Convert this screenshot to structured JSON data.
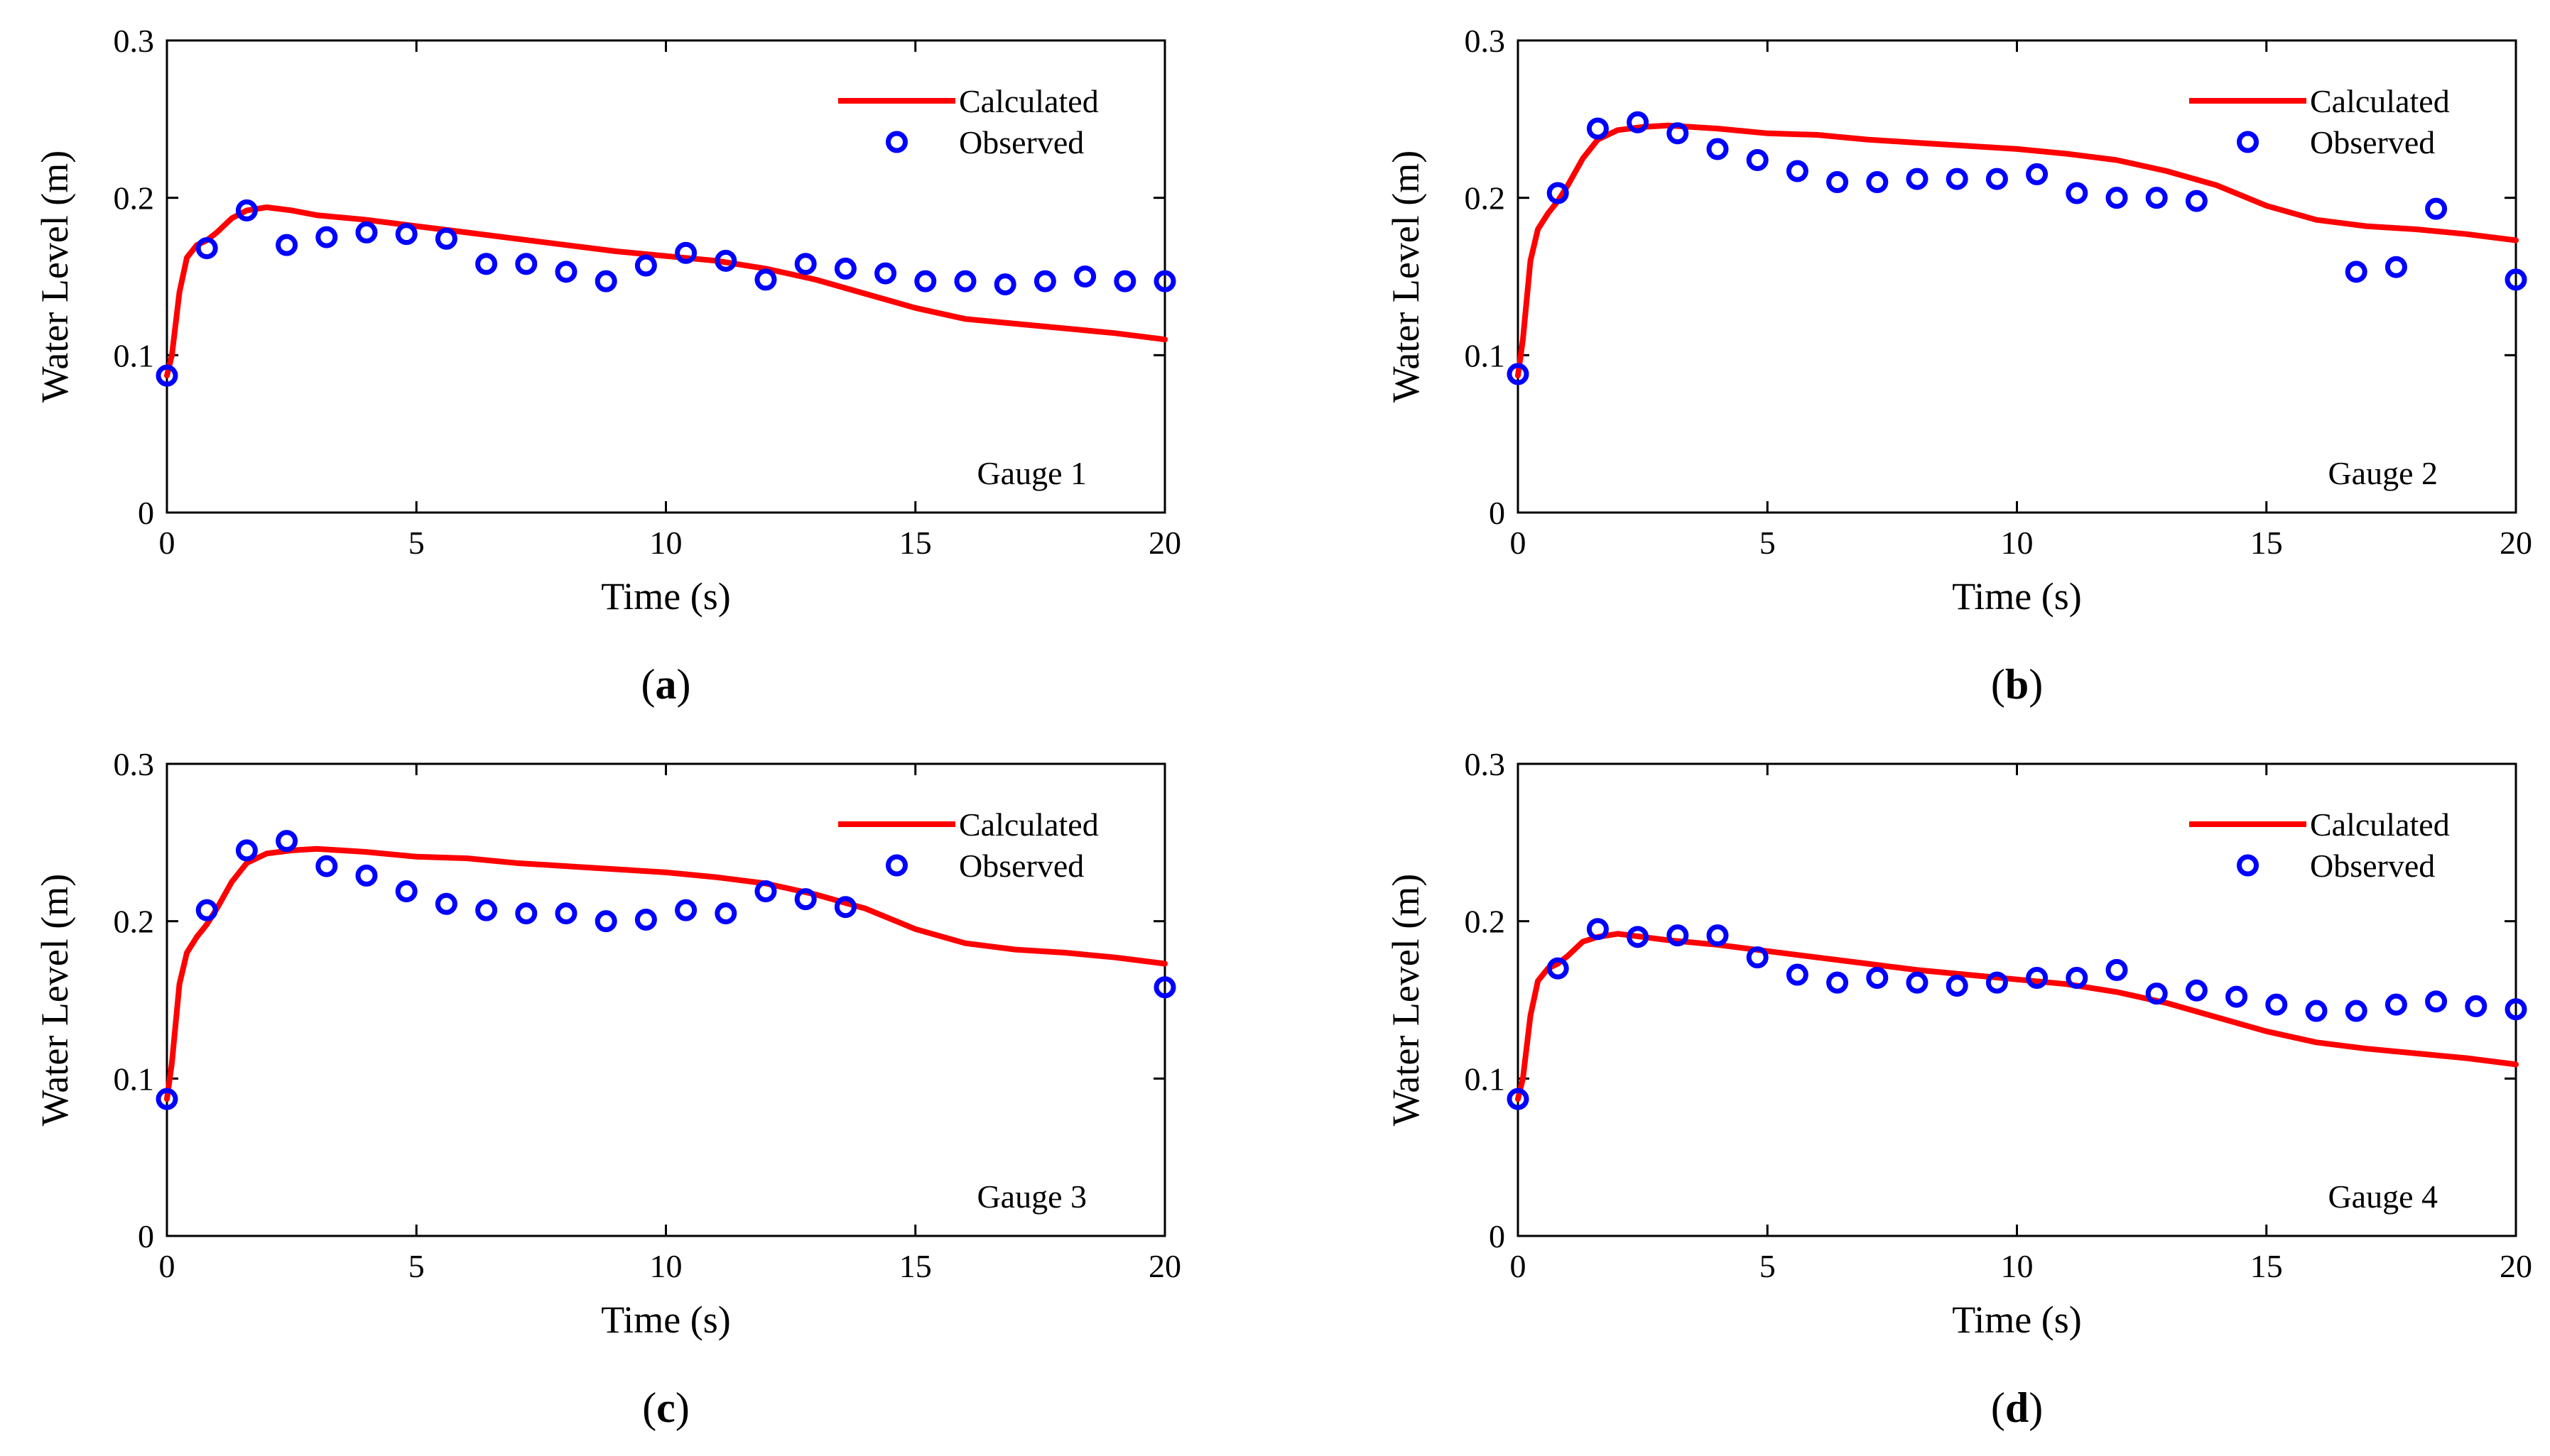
{
  "colors": {
    "calculated": "#ff0000",
    "observed": "#0000ff",
    "axis": "#000000"
  },
  "chart_data": [
    {
      "type": "line",
      "panel": "a",
      "caption": {
        "open": "(",
        "letter": "a",
        "close": ")"
      },
      "annotation": "Gauge 1",
      "xlabel": "Time (s)",
      "ylabel": "Water Level (m)",
      "xlim": [
        0,
        20
      ],
      "ylim": [
        0,
        0.3
      ],
      "xticks": [
        0,
        5,
        10,
        15,
        20
      ],
      "xtick_labels": [
        "0",
        "5",
        "10",
        "15",
        "20"
      ],
      "yticks": [
        0,
        0.1,
        0.2,
        0.3
      ],
      "ytick_labels": [
        "0",
        "0.1",
        "0.2",
        "0.3"
      ],
      "legend": {
        "position": "top-right",
        "entries": [
          "Calculated",
          "Observed"
        ]
      },
      "series": [
        {
          "name": "Calculated",
          "style": "line",
          "x": [
            0,
            0.1,
            0.25,
            0.4,
            0.6,
            0.8,
            1.0,
            1.3,
            1.6,
            2.0,
            2.5,
            3.0,
            4.0,
            5.0,
            6.0,
            7.0,
            8.0,
            9.0,
            10.0,
            11.0,
            12.0,
            13.0,
            14.0,
            15.0,
            16.0,
            17.0,
            18.0,
            19.0,
            20.0
          ],
          "y": [
            0.087,
            0.1,
            0.14,
            0.162,
            0.17,
            0.173,
            0.178,
            0.187,
            0.192,
            0.194,
            0.192,
            0.189,
            0.186,
            0.182,
            0.178,
            0.174,
            0.17,
            0.166,
            0.163,
            0.16,
            0.155,
            0.148,
            0.139,
            0.13,
            0.123,
            0.12,
            0.117,
            0.114,
            0.11
          ]
        },
        {
          "name": "Observed",
          "style": "marker",
          "x": [
            0,
            0.8,
            1.6,
            2.4,
            3.2,
            4.0,
            4.8,
            5.6,
            6.4,
            7.2,
            8.0,
            8.8,
            9.6,
            10.4,
            11.2,
            12.0,
            12.8,
            13.6,
            14.4,
            15.2,
            16.0,
            16.8,
            17.6,
            18.4,
            19.2,
            20.0
          ],
          "y": [
            0.087,
            0.168,
            0.192,
            0.17,
            0.175,
            0.178,
            0.177,
            0.174,
            0.158,
            0.158,
            0.153,
            0.147,
            0.157,
            0.165,
            0.16,
            0.148,
            0.158,
            0.155,
            0.152,
            0.147,
            0.147,
            0.145,
            0.147,
            0.15,
            0.147,
            0.147
          ]
        }
      ]
    },
    {
      "type": "line",
      "panel": "b",
      "caption": {
        "open": "(",
        "letter": "b",
        "close": ")"
      },
      "annotation": "Gauge 2",
      "xlabel": "Time (s)",
      "ylabel": "Water Level (m)",
      "xlim": [
        0,
        20
      ],
      "ylim": [
        0,
        0.3
      ],
      "xticks": [
        0,
        5,
        10,
        15,
        20
      ],
      "xtick_labels": [
        "0",
        "5",
        "10",
        "15",
        "20"
      ],
      "yticks": [
        0,
        0.1,
        0.2,
        0.3
      ],
      "ytick_labels": [
        "0",
        "0.1",
        "0.2",
        "0.3"
      ],
      "legend": {
        "position": "top-right",
        "entries": [
          "Calculated",
          "Observed"
        ]
      },
      "series": [
        {
          "name": "Calculated",
          "style": "line",
          "x": [
            0,
            0.1,
            0.25,
            0.4,
            0.6,
            0.8,
            1.0,
            1.3,
            1.6,
            2.0,
            2.5,
            3.0,
            4.0,
            5.0,
            6.0,
            7.0,
            8.0,
            9.0,
            10.0,
            11.0,
            12.0,
            13.0,
            14.0,
            15.0,
            16.0,
            17.0,
            18.0,
            19.0,
            20.0
          ],
          "y": [
            0.087,
            0.11,
            0.16,
            0.18,
            0.19,
            0.198,
            0.208,
            0.225,
            0.237,
            0.243,
            0.245,
            0.246,
            0.244,
            0.241,
            0.24,
            0.237,
            0.235,
            0.233,
            0.231,
            0.228,
            0.224,
            0.217,
            0.208,
            0.195,
            0.186,
            0.182,
            0.18,
            0.177,
            0.173
          ]
        },
        {
          "name": "Observed",
          "style": "marker",
          "x": [
            0,
            0.8,
            1.6,
            2.4,
            3.2,
            4.0,
            4.8,
            5.6,
            6.4,
            7.2,
            8.0,
            8.8,
            9.6,
            10.4,
            11.2,
            12.0,
            12.8,
            13.6,
            16.8,
            17.6,
            18.4,
            20.0
          ],
          "y": [
            0.088,
            0.203,
            0.244,
            0.248,
            0.241,
            0.231,
            0.224,
            0.217,
            0.21,
            0.21,
            0.212,
            0.212,
            0.212,
            0.215,
            0.203,
            0.2,
            0.2,
            0.198,
            0.153,
            0.156,
            0.193,
            0.148
          ]
        }
      ]
    },
    {
      "type": "line",
      "panel": "c",
      "caption": {
        "open": "(",
        "letter": "c",
        "close": ")"
      },
      "annotation": "Gauge 3",
      "xlabel": "Time (s)",
      "ylabel": "Water Level (m)",
      "xlim": [
        0,
        20
      ],
      "ylim": [
        0,
        0.3
      ],
      "xticks": [
        0,
        5,
        10,
        15,
        20
      ],
      "xtick_labels": [
        "0",
        "5",
        "10",
        "15",
        "20"
      ],
      "yticks": [
        0,
        0.1,
        0.2,
        0.3
      ],
      "ytick_labels": [
        "0",
        "0.1",
        "0.2",
        "0.3"
      ],
      "legend": {
        "position": "top-right",
        "entries": [
          "Calculated",
          "Observed"
        ]
      },
      "series": [
        {
          "name": "Calculated",
          "style": "line",
          "x": [
            0,
            0.1,
            0.25,
            0.4,
            0.6,
            0.8,
            1.0,
            1.3,
            1.6,
            2.0,
            2.5,
            3.0,
            4.0,
            5.0,
            6.0,
            7.0,
            8.0,
            9.0,
            10.0,
            11.0,
            12.0,
            13.0,
            14.0,
            15.0,
            16.0,
            17.0,
            18.0,
            19.0,
            20.0
          ],
          "y": [
            0.087,
            0.11,
            0.16,
            0.18,
            0.19,
            0.198,
            0.208,
            0.225,
            0.237,
            0.243,
            0.245,
            0.246,
            0.244,
            0.241,
            0.24,
            0.237,
            0.235,
            0.233,
            0.231,
            0.228,
            0.224,
            0.217,
            0.208,
            0.195,
            0.186,
            0.182,
            0.18,
            0.177,
            0.173
          ]
        },
        {
          "name": "Observed",
          "style": "marker",
          "x": [
            0,
            0.8,
            1.6,
            2.4,
            3.2,
            4.0,
            4.8,
            5.6,
            6.4,
            7.2,
            8.0,
            8.8,
            9.6,
            10.4,
            11.2,
            12.0,
            12.8,
            13.6,
            20.0
          ],
          "y": [
            0.087,
            0.207,
            0.245,
            0.251,
            0.235,
            0.229,
            0.219,
            0.211,
            0.207,
            0.205,
            0.205,
            0.2,
            0.201,
            0.207,
            0.205,
            0.219,
            0.214,
            0.209,
            0.158
          ]
        }
      ]
    },
    {
      "type": "line",
      "panel": "d",
      "caption": {
        "open": "(",
        "letter": "d",
        "close": ")"
      },
      "annotation": "Gauge 4",
      "xlabel": "Time (s)",
      "ylabel": "Water Level (m)",
      "xlim": [
        0,
        20
      ],
      "ylim": [
        0,
        0.3
      ],
      "xticks": [
        0,
        5,
        10,
        15,
        20
      ],
      "xtick_labels": [
        "0",
        "5",
        "10",
        "15",
        "20"
      ],
      "yticks": [
        0,
        0.1,
        0.2,
        0.3
      ],
      "ytick_labels": [
        "0",
        "0.1",
        "0.2",
        "0.3"
      ],
      "legend": {
        "position": "top-right",
        "entries": [
          "Calculated",
          "Observed"
        ]
      },
      "series": [
        {
          "name": "Calculated",
          "style": "line",
          "x": [
            0,
            0.1,
            0.25,
            0.4,
            0.6,
            0.8,
            1.0,
            1.3,
            1.6,
            2.0,
            2.5,
            3.0,
            4.0,
            5.0,
            6.0,
            7.0,
            8.0,
            9.0,
            10.0,
            11.0,
            12.0,
            13.0,
            14.0,
            15.0,
            16.0,
            17.0,
            18.0,
            19.0,
            20.0
          ],
          "y": [
            0.087,
            0.1,
            0.14,
            0.162,
            0.17,
            0.173,
            0.178,
            0.187,
            0.19,
            0.192,
            0.19,
            0.188,
            0.185,
            0.181,
            0.177,
            0.173,
            0.169,
            0.166,
            0.163,
            0.16,
            0.155,
            0.148,
            0.139,
            0.13,
            0.123,
            0.119,
            0.116,
            0.113,
            0.109
          ]
        },
        {
          "name": "Observed",
          "style": "marker",
          "x": [
            0,
            0.8,
            1.6,
            2.4,
            3.2,
            4.0,
            4.8,
            5.6,
            6.4,
            7.2,
            8.0,
            8.8,
            9.6,
            10.4,
            11.2,
            12.0,
            12.8,
            13.6,
            14.4,
            15.2,
            16.0,
            16.8,
            17.6,
            18.4,
            19.2,
            20.0
          ],
          "y": [
            0.087,
            0.17,
            0.195,
            0.19,
            0.191,
            0.191,
            0.177,
            0.166,
            0.161,
            0.164,
            0.161,
            0.159,
            0.161,
            0.164,
            0.164,
            0.169,
            0.154,
            0.156,
            0.152,
            0.147,
            0.143,
            0.143,
            0.147,
            0.149,
            0.146,
            0.144
          ]
        }
      ]
    }
  ]
}
